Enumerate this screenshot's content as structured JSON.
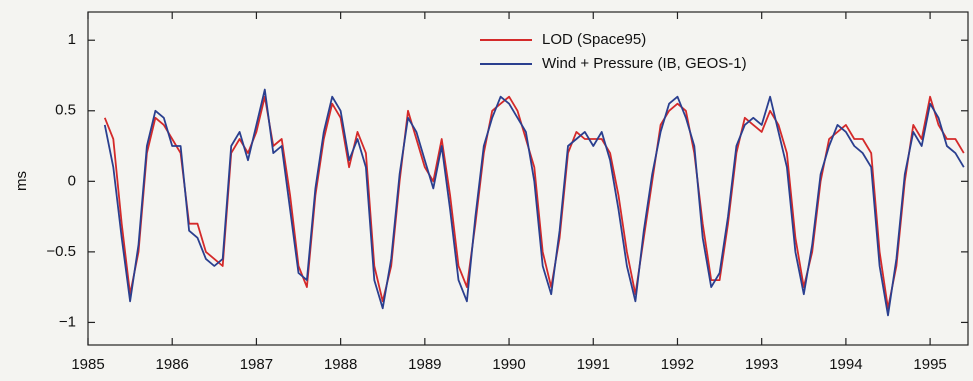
{
  "chart_data": {
    "type": "line",
    "y_label": "ms",
    "x": [
      1985.2,
      1985.3,
      1985.4,
      1985.5,
      1985.6,
      1985.7,
      1985.8,
      1985.9,
      1986.0,
      1986.1,
      1986.2,
      1986.3,
      1986.4,
      1986.5,
      1986.6,
      1986.7,
      1986.8,
      1986.9,
      1987.0,
      1987.1,
      1987.2,
      1987.3,
      1987.4,
      1987.5,
      1987.6,
      1987.7,
      1987.8,
      1987.9,
      1988.0,
      1988.1,
      1988.2,
      1988.3,
      1988.4,
      1988.5,
      1988.6,
      1988.7,
      1988.8,
      1988.9,
      1989.0,
      1989.1,
      1989.2,
      1989.3,
      1989.4,
      1989.5,
      1989.6,
      1989.7,
      1989.8,
      1989.9,
      1990.0,
      1990.1,
      1990.2,
      1990.3,
      1990.4,
      1990.5,
      1990.6,
      1990.7,
      1990.8,
      1990.9,
      1991.0,
      1991.1,
      1991.2,
      1991.3,
      1991.4,
      1991.5,
      1991.6,
      1991.7,
      1991.8,
      1991.9,
      1992.0,
      1992.1,
      1992.2,
      1992.3,
      1992.4,
      1992.5,
      1992.6,
      1992.7,
      1992.8,
      1992.9,
      1993.0,
      1993.1,
      1993.2,
      1993.3,
      1993.4,
      1993.5,
      1993.6,
      1993.7,
      1993.8,
      1993.9,
      1994.0,
      1994.1,
      1994.2,
      1994.3,
      1994.4,
      1994.5,
      1994.6,
      1994.7,
      1994.8,
      1994.9,
      1995.0,
      1995.1,
      1995.2,
      1995.3,
      1995.4
    ],
    "series": [
      {
        "name": "LOD (Space95)",
        "color": "#d42a2a",
        "values": [
          0.45,
          0.3,
          -0.3,
          -0.8,
          -0.5,
          0.2,
          0.45,
          0.4,
          0.3,
          0.2,
          -0.3,
          -0.3,
          -0.5,
          -0.55,
          -0.6,
          0.2,
          0.3,
          0.2,
          0.35,
          0.6,
          0.25,
          0.3,
          -0.1,
          -0.6,
          -0.75,
          -0.1,
          0.3,
          0.55,
          0.45,
          0.1,
          0.35,
          0.2,
          -0.6,
          -0.85,
          -0.6,
          0.0,
          0.5,
          0.3,
          0.1,
          0.0,
          0.3,
          -0.1,
          -0.6,
          -0.75,
          -0.3,
          0.2,
          0.5,
          0.55,
          0.6,
          0.5,
          0.3,
          0.1,
          -0.5,
          -0.75,
          -0.4,
          0.2,
          0.35,
          0.3,
          0.3,
          0.3,
          0.2,
          -0.1,
          -0.5,
          -0.8,
          -0.4,
          0.0,
          0.4,
          0.5,
          0.55,
          0.5,
          0.2,
          -0.3,
          -0.7,
          -0.7,
          -0.3,
          0.2,
          0.45,
          0.4,
          0.35,
          0.5,
          0.4,
          0.2,
          -0.4,
          -0.75,
          -0.5,
          0.0,
          0.3,
          0.35,
          0.4,
          0.3,
          0.3,
          0.2,
          -0.5,
          -0.9,
          -0.6,
          0.0,
          0.4,
          0.3,
          0.6,
          0.4,
          0.3,
          0.3,
          0.2
        ]
      },
      {
        "name": "Wind + Pressure (IB, GEOS-1)",
        "color": "#2a3f8f",
        "values": [
          0.4,
          0.1,
          -0.4,
          -0.85,
          -0.45,
          0.25,
          0.5,
          0.45,
          0.25,
          0.25,
          -0.35,
          -0.4,
          -0.55,
          -0.6,
          -0.55,
          0.25,
          0.35,
          0.15,
          0.4,
          0.65,
          0.2,
          0.25,
          -0.2,
          -0.65,
          -0.7,
          -0.05,
          0.35,
          0.6,
          0.5,
          0.15,
          0.3,
          0.1,
          -0.7,
          -0.9,
          -0.55,
          0.05,
          0.45,
          0.35,
          0.15,
          -0.05,
          0.25,
          -0.2,
          -0.7,
          -0.85,
          -0.25,
          0.25,
          0.45,
          0.6,
          0.55,
          0.45,
          0.35,
          0.0,
          -0.6,
          -0.8,
          -0.35,
          0.25,
          0.3,
          0.35,
          0.25,
          0.35,
          0.15,
          -0.2,
          -0.6,
          -0.85,
          -0.35,
          0.05,
          0.35,
          0.55,
          0.6,
          0.45,
          0.25,
          -0.4,
          -0.75,
          -0.65,
          -0.25,
          0.25,
          0.4,
          0.45,
          0.4,
          0.6,
          0.35,
          0.1,
          -0.5,
          -0.8,
          -0.45,
          0.05,
          0.25,
          0.4,
          0.35,
          0.25,
          0.2,
          0.1,
          -0.6,
          -0.95,
          -0.55,
          0.05,
          0.35,
          0.25,
          0.55,
          0.45,
          0.25,
          0.2,
          0.1
        ]
      }
    ],
    "xlim": [
      1985,
      1995.45
    ],
    "xticks": [
      1985,
      1986,
      1987,
      1988,
      1989,
      1990,
      1991,
      1992,
      1993,
      1994,
      1995
    ],
    "ylim": [
      -1.16,
      1.2
    ],
    "yticks": [
      1,
      0.5,
      0,
      {
        "value": -0.5,
        "label": "−0.5"
      },
      {
        "value": -1,
        "label": "−1"
      }
    ],
    "legend": "upper center"
  }
}
